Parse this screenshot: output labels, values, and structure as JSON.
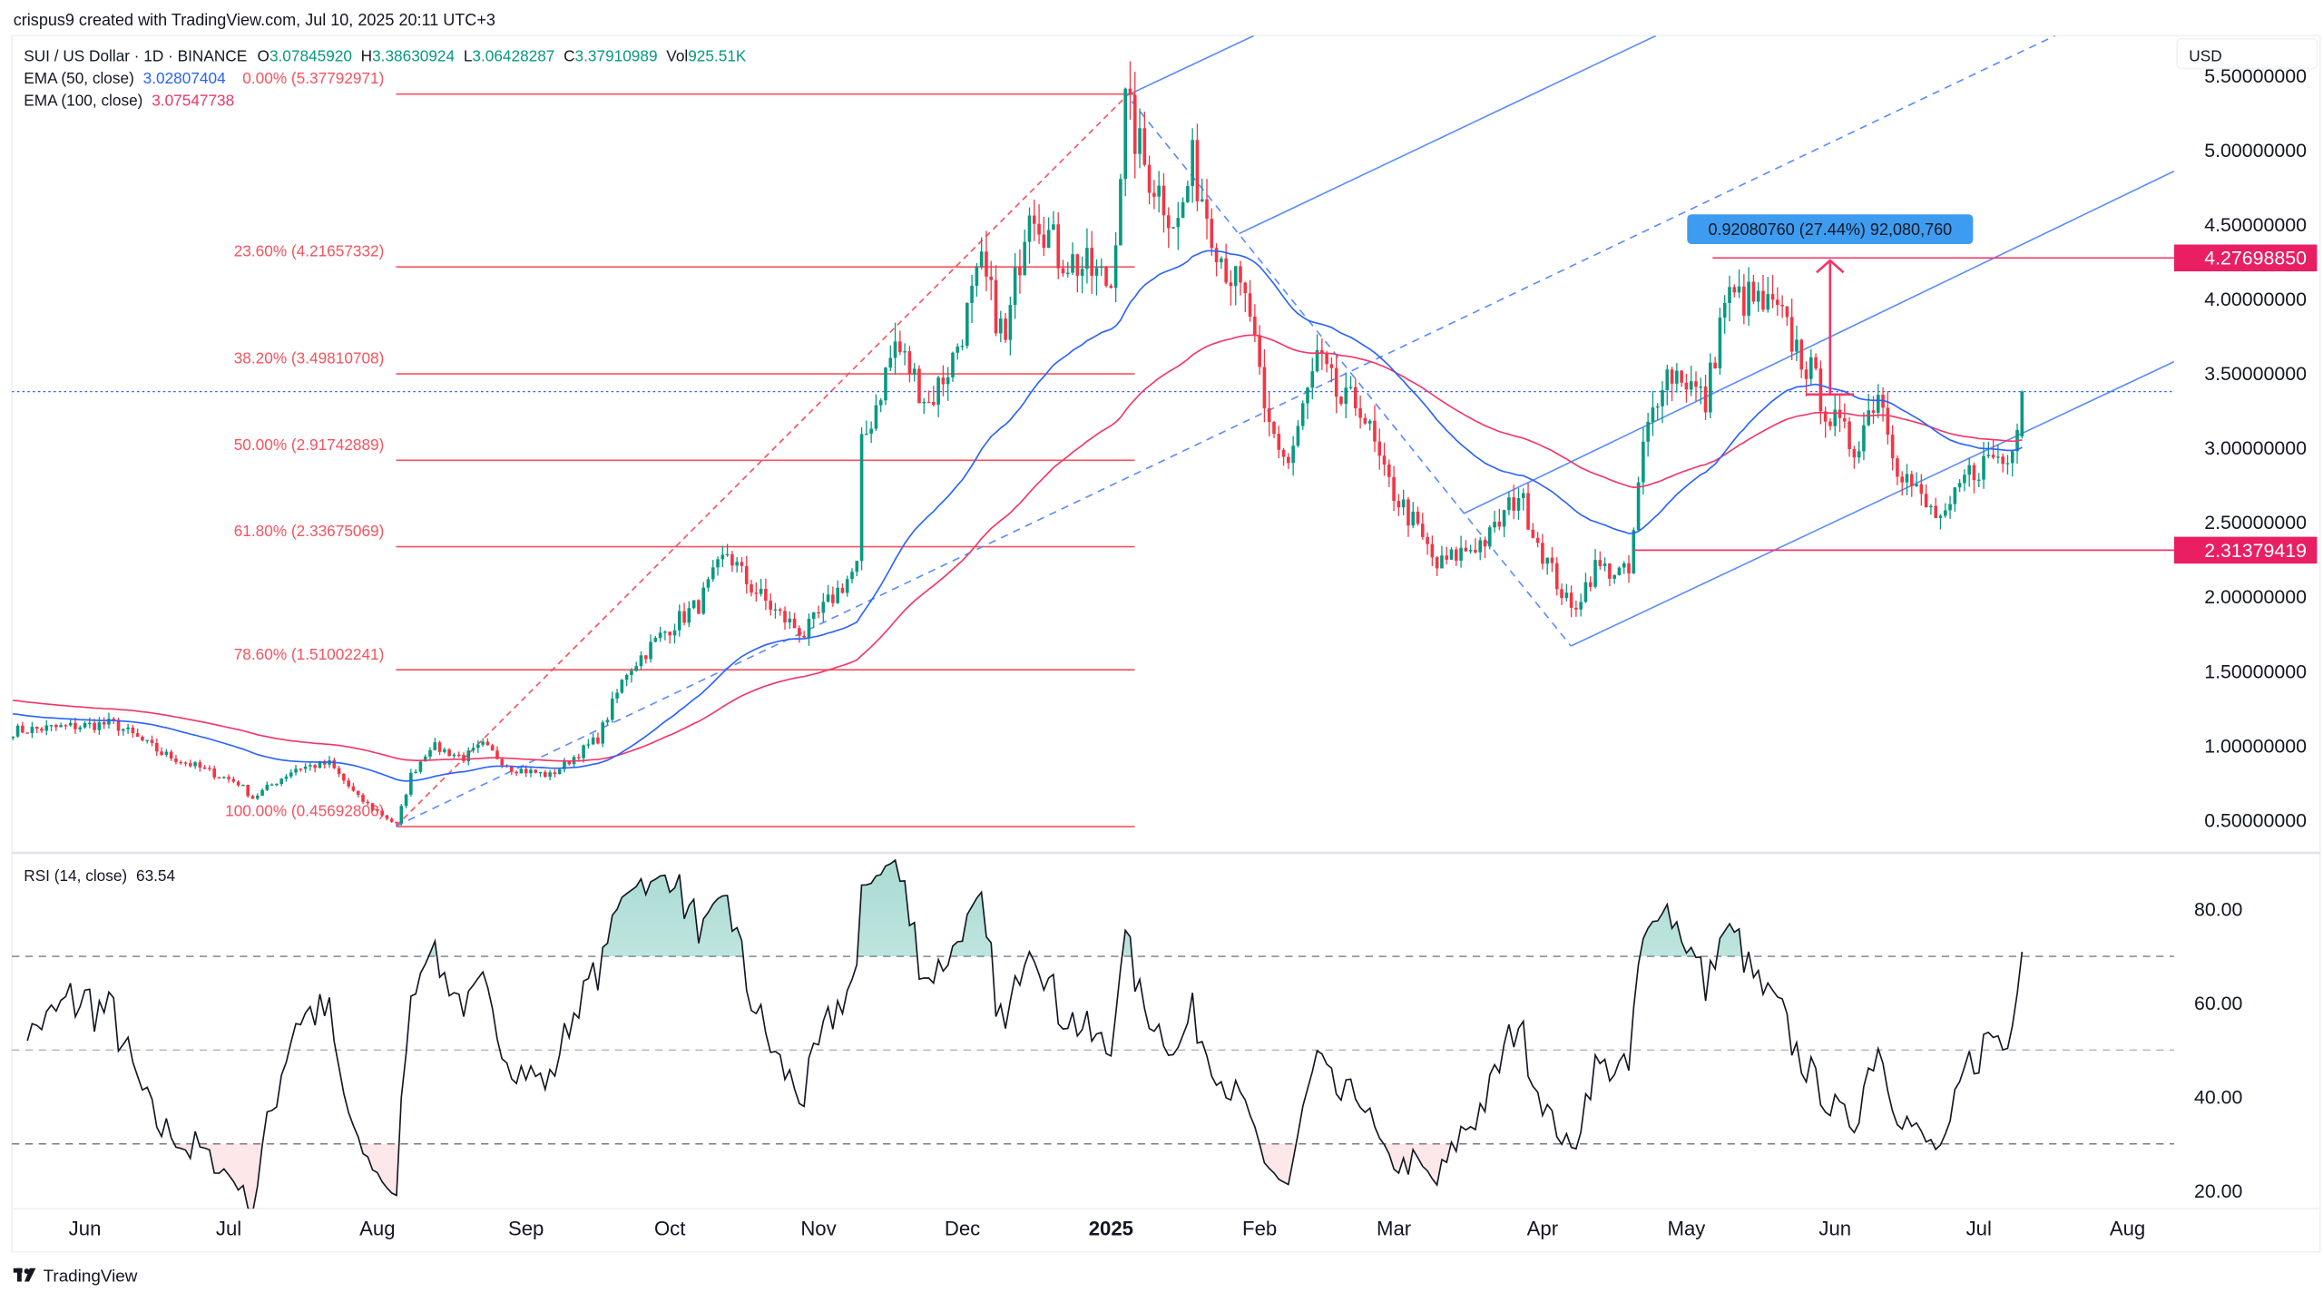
{
  "header": {
    "attribution": "crispus9 created with TradingView.com, Jul 10, 2025 20:11 UTC+3"
  },
  "legend": {
    "symbol": "SUI / US Dollar · 1D · BINANCE",
    "o_label": "O",
    "open": "3.07845920",
    "h_label": "H",
    "high": "3.38630924",
    "l_label": "L",
    "low": "3.06428287",
    "c_label": "C",
    "close": "3.37910989",
    "vol_label": "Vol",
    "volume": "925.51K",
    "ema50_label": "EMA (50, close)",
    "ema50_value": "3.02807404",
    "ema100_label": "EMA (100, close)",
    "ema100_value": "3.07547738"
  },
  "price_axis": {
    "currency": "USD",
    "ticks": [
      "5.50000000",
      "5.00000000",
      "4.50000000",
      "4.00000000",
      "3.50000000",
      "3.00000000",
      "2.50000000",
      "2.00000000",
      "1.50000000",
      "1.00000000",
      "0.50000000"
    ]
  },
  "price_labels": [
    {
      "value": "4.27698850"
    },
    {
      "value": "2.31379419"
    }
  ],
  "measure": {
    "label": "0.92080760 (27.44%) 92,080,760"
  },
  "fib": [
    {
      "label": "0.00% (5.37792971)",
      "price": 5.37792971
    },
    {
      "label": "23.60% (4.21657332)",
      "price": 4.21657332
    },
    {
      "label": "38.20% (3.49810708)",
      "price": 3.49810708
    },
    {
      "label": "50.00% (2.91742889)",
      "price": 2.91742889
    },
    {
      "label": "61.80% (2.33675069)",
      "price": 2.33675069
    },
    {
      "label": "78.60% (1.51002241)",
      "price": 1.51002241
    },
    {
      "label": "100.00% (0.45692806)",
      "price": 0.45692806
    }
  ],
  "rsi": {
    "label": "RSI (14, close)",
    "value": "63.54",
    "ticks": [
      "80.00",
      "60.00",
      "40.00",
      "20.00"
    ],
    "bands": [
      70,
      50,
      30
    ]
  },
  "time_axis": [
    {
      "label": "Jun",
      "date": "2024-06-01"
    },
    {
      "label": "Jul",
      "date": "2024-07-01"
    },
    {
      "label": "Aug",
      "date": "2024-08-01"
    },
    {
      "label": "Sep",
      "date": "2024-09-01"
    },
    {
      "label": "Oct",
      "date": "2024-10-01"
    },
    {
      "label": "Nov",
      "date": "2024-11-01"
    },
    {
      "label": "Dec",
      "date": "2024-12-01"
    },
    {
      "label": "2025",
      "date": "2025-01-01"
    },
    {
      "label": "Feb",
      "date": "2025-02-01"
    },
    {
      "label": "Mar",
      "date": "2025-03-01"
    },
    {
      "label": "Apr",
      "date": "2025-04-01"
    },
    {
      "label": "May",
      "date": "2025-05-01"
    },
    {
      "label": "Jun",
      "date": "2025-06-01"
    },
    {
      "label": "Jul",
      "date": "2025-07-01"
    },
    {
      "label": "Aug",
      "date": "2025-08-01"
    }
  ],
  "footer": {
    "brand": "TradingView"
  },
  "colors": {
    "up": "#089981",
    "down": "#f23645",
    "ema50": "#2962ff",
    "ema100": "#f23667",
    "fib": "#f7525f",
    "pitchfork": "#5b8cff",
    "label_bg": "#e91e63",
    "measure_bg": "#3d9cf0",
    "rsi": "#131722"
  },
  "chart_data": {
    "type": "candlestick",
    "title": "SUI / US Dollar · 1D · BINANCE",
    "ylabel": "USD",
    "ylim": [
      0.4,
      5.5
    ],
    "ema_seed": {
      "ema50": 1.22,
      "ema100": 1.31
    },
    "close_keypoints": [
      [
        "2024-05-17",
        1.1
      ],
      [
        "2024-06-07",
        1.15
      ],
      [
        "2024-06-17",
        0.95
      ],
      [
        "2024-07-03",
        0.75
      ],
      [
        "2024-07-06",
        0.65
      ],
      [
        "2024-07-15",
        0.85
      ],
      [
        "2024-07-22",
        0.88
      ],
      [
        "2024-07-28",
        0.65
      ],
      [
        "2024-08-05",
        0.47
      ],
      [
        "2024-08-08",
        0.8
      ],
      [
        "2024-08-12",
        1.0
      ],
      [
        "2024-08-19",
        0.92
      ],
      [
        "2024-08-23",
        1.0
      ],
      [
        "2024-08-29",
        0.85
      ],
      [
        "2024-09-06",
        0.8
      ],
      [
        "2024-09-16",
        1.05
      ],
      [
        "2024-09-22",
        1.5
      ],
      [
        "2024-10-01",
        1.8
      ],
      [
        "2024-10-07",
        1.95
      ],
      [
        "2024-10-13",
        2.3
      ],
      [
        "2024-10-17",
        2.1
      ],
      [
        "2024-10-23",
        1.9
      ],
      [
        "2024-10-29",
        1.75
      ],
      [
        "2024-11-04",
        2.0
      ],
      [
        "2024-11-09",
        2.2
      ],
      [
        "2024-11-10",
        3.0
      ],
      [
        "2024-11-17",
        3.7
      ],
      [
        "2024-11-24",
        3.3
      ],
      [
        "2024-11-29",
        3.6
      ],
      [
        "2024-12-05",
        4.2
      ],
      [
        "2024-12-10",
        3.7
      ],
      [
        "2024-12-15",
        4.7
      ],
      [
        "2024-12-21",
        4.3
      ],
      [
        "2024-12-27",
        4.2
      ],
      [
        "2025-01-01",
        4.1
      ],
      [
        "2025-01-04",
        5.3
      ],
      [
        "2025-01-08",
        4.9
      ],
      [
        "2025-01-15",
        4.5
      ],
      [
        "2025-01-18",
        4.9
      ],
      [
        "2025-01-24",
        4.3
      ],
      [
        "2025-01-30",
        3.9
      ],
      [
        "2025-02-02",
        3.2
      ],
      [
        "2025-02-07",
        2.9
      ],
      [
        "2025-02-13",
        3.6
      ],
      [
        "2025-02-18",
        3.3
      ],
      [
        "2025-02-22",
        3.3
      ],
      [
        "2025-02-27",
        2.8
      ],
      [
        "2025-03-05",
        2.5
      ],
      [
        "2025-03-10",
        2.2
      ],
      [
        "2025-03-15",
        2.3
      ],
      [
        "2025-03-21",
        2.4
      ],
      [
        "2025-03-27",
        2.7
      ],
      [
        "2025-04-01",
        2.3
      ],
      [
        "2025-04-07",
        1.9
      ],
      [
        "2025-04-12",
        2.2
      ],
      [
        "2025-04-19",
        2.15
      ],
      [
        "2025-04-22",
        3.0
      ],
      [
        "2025-04-26",
        3.5
      ],
      [
        "2025-04-30",
        3.5
      ],
      [
        "2025-05-05",
        3.3
      ],
      [
        "2025-05-09",
        4.0
      ],
      [
        "2025-05-14",
        4.0
      ],
      [
        "2025-05-20",
        3.9
      ],
      [
        "2025-05-27",
        3.5
      ],
      [
        "2025-05-31",
        3.2
      ],
      [
        "2025-06-05",
        3.0
      ],
      [
        "2025-06-10",
        3.4
      ],
      [
        "2025-06-14",
        2.9
      ],
      [
        "2025-06-20",
        2.6
      ],
      [
        "2025-06-24",
        2.5
      ],
      [
        "2025-06-28",
        2.8
      ],
      [
        "2025-07-04",
        2.95
      ],
      [
        "2025-07-07",
        2.9
      ],
      [
        "2025-07-10",
        3.379
      ]
    ],
    "indicators": [
      "EMA 50",
      "EMA 100",
      "RSI 14"
    ]
  }
}
